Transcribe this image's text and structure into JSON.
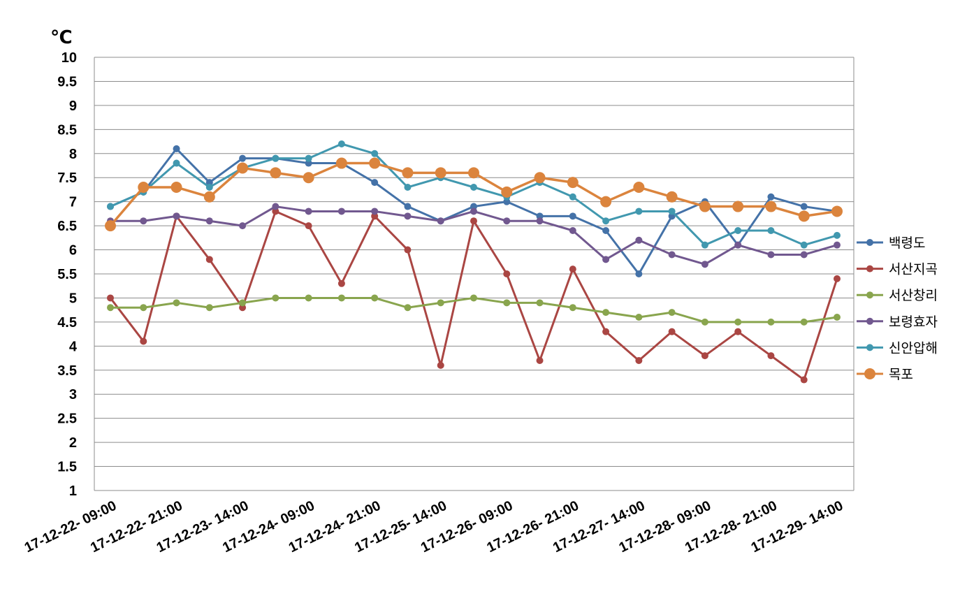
{
  "chart_data": {
    "type": "line",
    "unit_label": "℃",
    "ylim": [
      1,
      10
    ],
    "y_ticks": [
      "1",
      "1.5",
      "2",
      "2.5",
      "3",
      "3.5",
      "4",
      "4.5",
      "5",
      "5.5",
      "6",
      "6.5",
      "7",
      "7.5",
      "8",
      "8.5",
      "9",
      "9.5",
      "10"
    ],
    "grid": true,
    "legend_position": "right",
    "x_tick_labels": [
      "17-12-22- 09:00",
      "17-12-22- 21:00",
      "17-12-23- 14:00",
      "17-12-24- 09:00",
      "17-12-24- 21:00",
      "17-12-25- 14:00",
      "17-12-26- 09:00",
      "17-12-26- 21:00",
      "17-12-27- 14:00",
      "17-12-28- 09:00",
      "17-12-28- 21:00",
      "17-12-29- 14:00"
    ],
    "series": [
      {
        "name": "백령도",
        "color": "#4472A8",
        "values": [
          6.9,
          7.2,
          8.1,
          7.4,
          7.9,
          7.9,
          7.8,
          7.8,
          7.4,
          6.9,
          6.6,
          6.9,
          7.0,
          6.7,
          6.7,
          6.4,
          5.5,
          6.7,
          7.0,
          6.1,
          7.1,
          6.9,
          6.8
        ]
      },
      {
        "name": "서산지곡",
        "color": "#AA4643",
        "values": [
          5.0,
          4.1,
          6.7,
          5.8,
          4.8,
          6.8,
          6.5,
          5.3,
          6.7,
          6.0,
          3.6,
          6.6,
          5.5,
          3.7,
          5.6,
          4.3,
          3.7,
          4.3,
          3.8,
          4.3,
          3.8,
          3.3,
          5.4
        ]
      },
      {
        "name": "서산창리",
        "color": "#89A54E",
        "values": [
          4.8,
          4.8,
          4.9,
          4.8,
          4.9,
          5.0,
          5.0,
          5.0,
          5.0,
          4.8,
          4.9,
          5.0,
          4.9,
          4.9,
          4.8,
          4.7,
          4.6,
          4.7,
          4.5,
          4.5,
          4.5,
          4.5,
          4.6
        ]
      },
      {
        "name": "보령효자",
        "color": "#71588F",
        "values": [
          6.6,
          6.6,
          6.7,
          6.6,
          6.5,
          6.9,
          6.8,
          6.8,
          6.8,
          6.7,
          6.6,
          6.8,
          6.6,
          6.6,
          6.4,
          5.8,
          6.2,
          5.9,
          5.7,
          6.1,
          5.9,
          5.9,
          6.1
        ]
      },
      {
        "name": "신안압해",
        "color": "#4198AF",
        "values": [
          6.9,
          7.2,
          7.8,
          7.3,
          7.7,
          7.9,
          7.9,
          8.2,
          8.0,
          7.3,
          7.5,
          7.3,
          7.1,
          7.4,
          7.1,
          6.6,
          6.8,
          6.8,
          6.1,
          6.4,
          6.4,
          6.1,
          6.3
        ]
      },
      {
        "name": "목포",
        "color": "#DB843D",
        "values": [
          6.5,
          7.3,
          7.3,
          7.1,
          7.7,
          7.6,
          7.5,
          7.8,
          7.8,
          7.6,
          7.6,
          7.6,
          7.2,
          7.5,
          7.4,
          7.0,
          7.3,
          7.1,
          6.9,
          6.9,
          6.9,
          6.7,
          6.8
        ]
      }
    ]
  }
}
